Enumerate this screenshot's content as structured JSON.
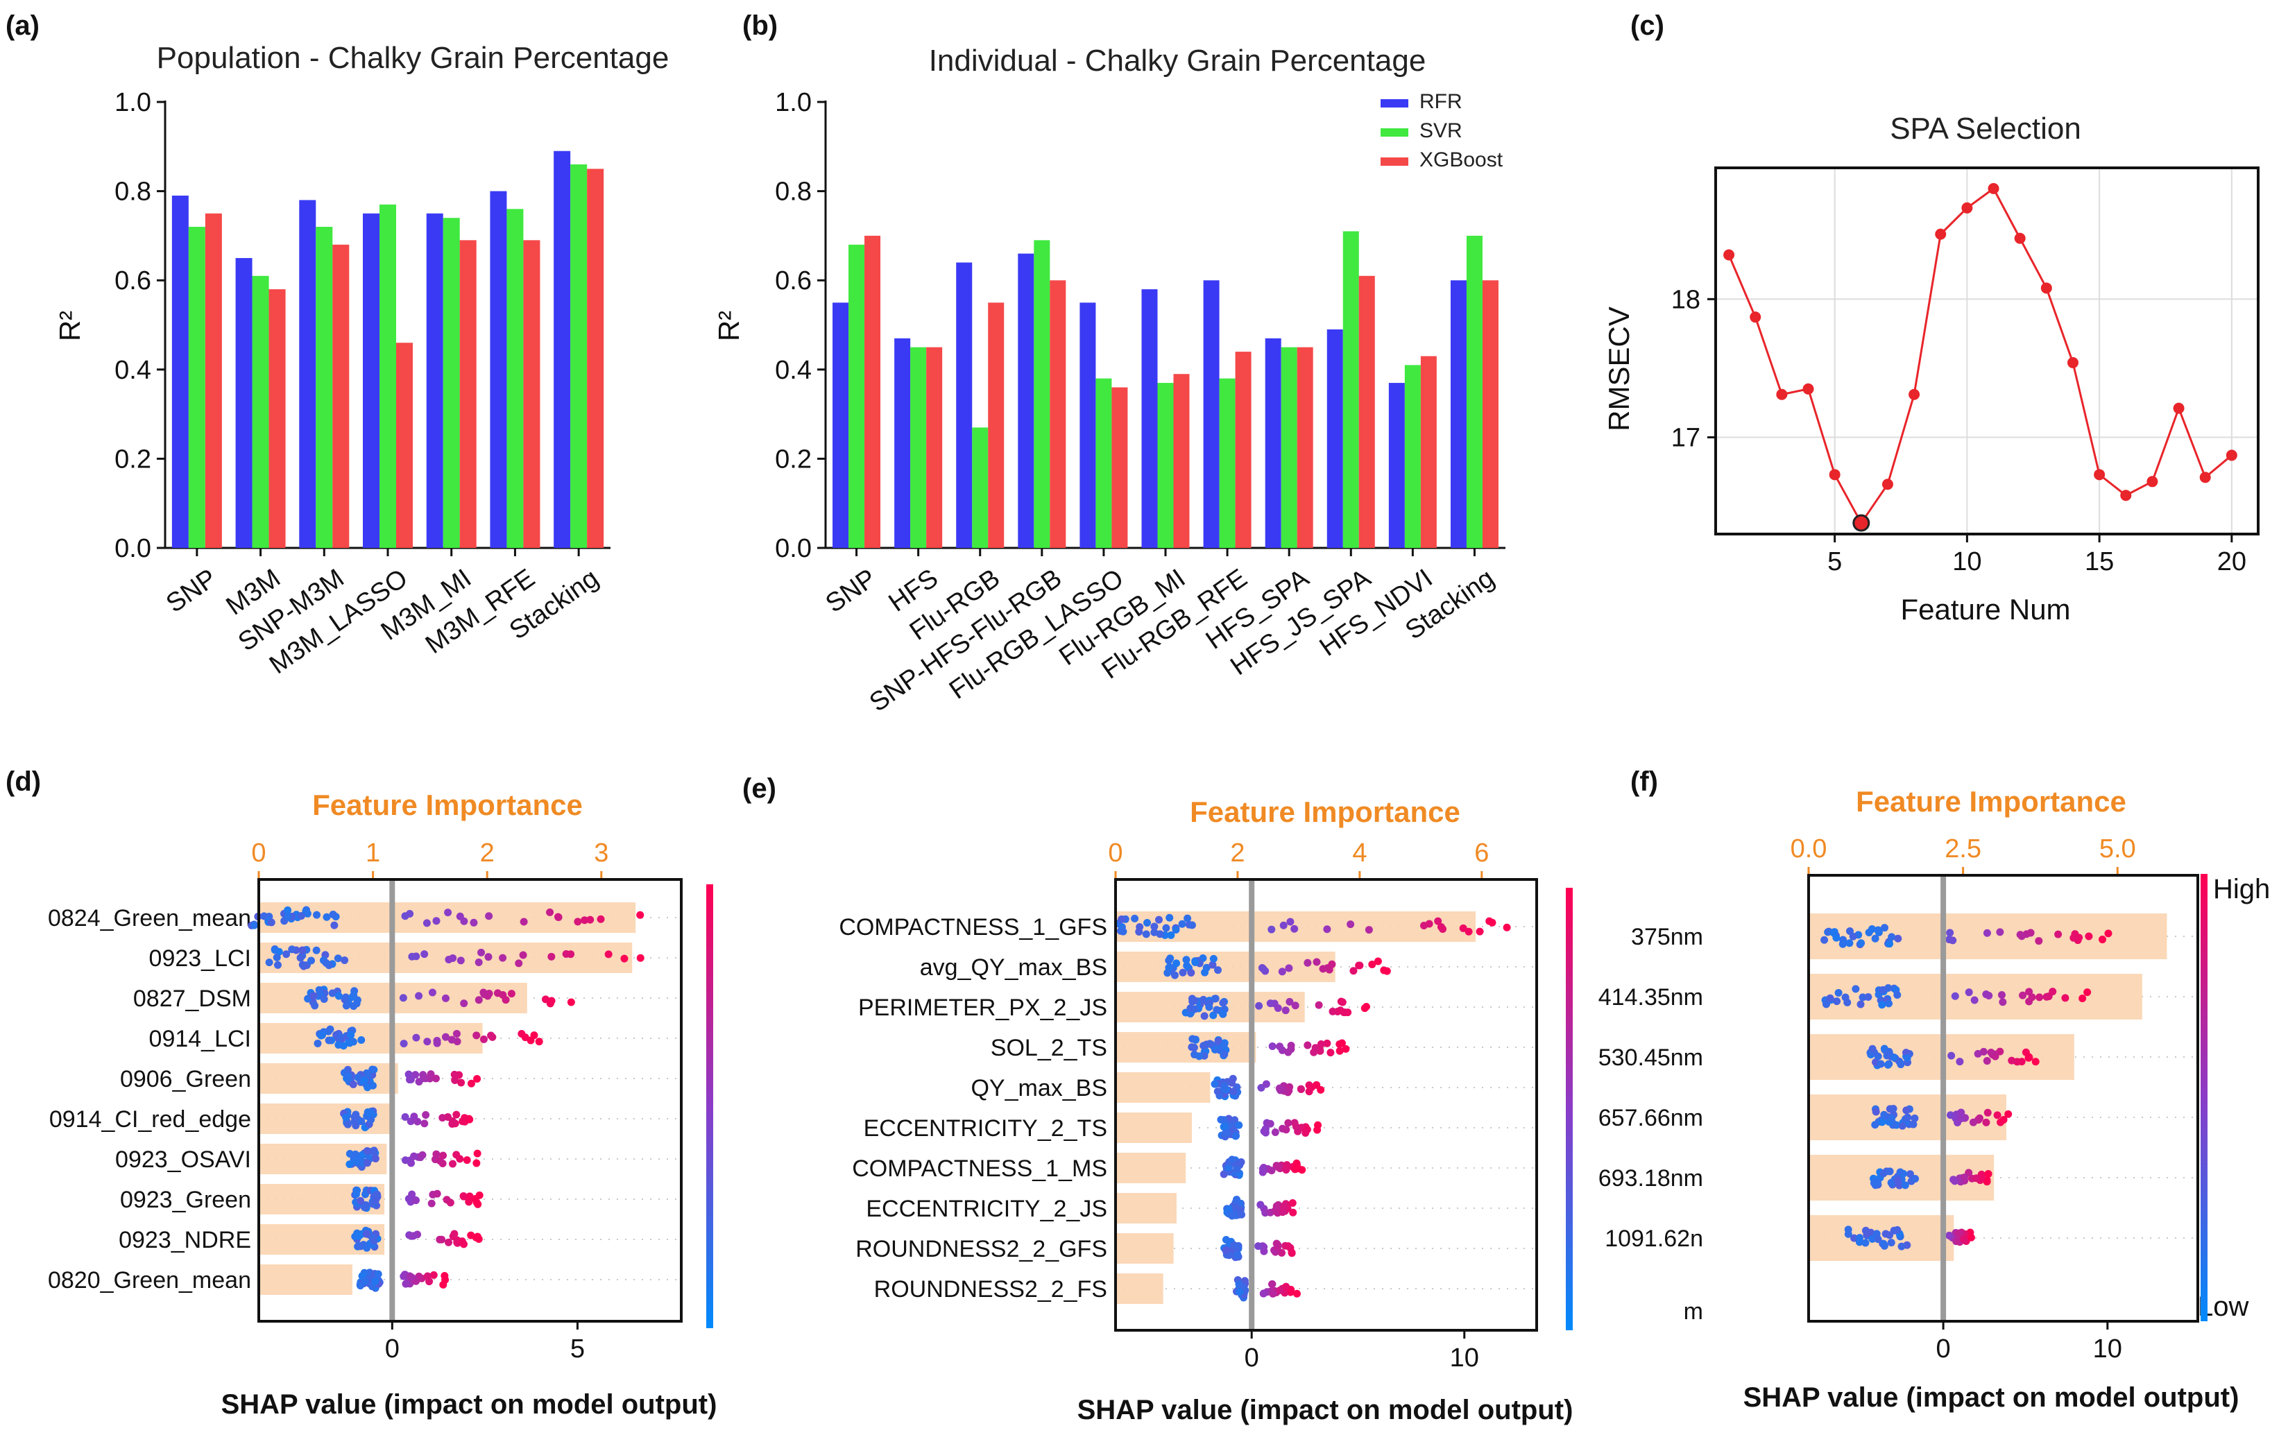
{
  "panels": {
    "a": "(a)",
    "b": "(b)",
    "c": "(c)",
    "d": "(d)",
    "e": "(e)",
    "f": "(f)"
  },
  "colors": {
    "rfr": "#3a3af5",
    "svr": "#40e840",
    "xgb": "#f54848",
    "orange": "#f08a24",
    "line": "#e8252a"
  },
  "chart_data": [
    {
      "id": "a",
      "type": "bar",
      "title": "Population - Chalky Grain Percentage",
      "ylabel": "R²",
      "ylim": [
        0,
        1.0
      ],
      "yticks": [
        "0.0",
        "0.2",
        "0.4",
        "0.6",
        "0.8",
        "1.0"
      ],
      "categories": [
        "SNP",
        "M3M",
        "SNP-M3M",
        "M3M_LASSO",
        "M3M_MI",
        "M3M_RFE",
        "Stacking"
      ],
      "series": [
        {
          "name": "RFR",
          "values": [
            0.79,
            0.65,
            0.78,
            0.75,
            0.75,
            0.8,
            0.89
          ]
        },
        {
          "name": "SVR",
          "values": [
            0.72,
            0.61,
            0.72,
            0.77,
            0.74,
            0.76,
            0.86
          ]
        },
        {
          "name": "XGBoost",
          "values": [
            0.75,
            0.58,
            0.68,
            0.46,
            0.69,
            0.69,
            0.85
          ]
        }
      ]
    },
    {
      "id": "b",
      "type": "bar",
      "title": "Individual - Chalky Grain Percentage",
      "ylabel": "R²",
      "ylim": [
        0,
        1.0
      ],
      "yticks": [
        "0.0",
        "0.2",
        "0.4",
        "0.6",
        "0.8",
        "1.0"
      ],
      "legend": [
        "RFR",
        "SVR",
        "XGBoost"
      ],
      "categories": [
        "SNP",
        "HFS",
        "Flu-RGB",
        "SNP-HFS-Flu-RGB",
        "Flu-RGB_LASSO",
        "Flu-RGB_MI",
        "Flu-RGB_RFE",
        "HFS_SPA",
        "HFS_JS_SPA",
        "HFS_NDVI",
        "Stacking"
      ],
      "series": [
        {
          "name": "RFR",
          "values": [
            0.55,
            0.47,
            0.64,
            0.66,
            0.55,
            0.58,
            0.6,
            0.47,
            0.49,
            0.37,
            0.6
          ]
        },
        {
          "name": "SVR",
          "values": [
            0.68,
            0.45,
            0.27,
            0.69,
            0.38,
            0.37,
            0.38,
            0.45,
            0.71,
            0.41,
            0.7
          ]
        },
        {
          "name": "XGBoost",
          "values": [
            0.7,
            0.45,
            0.55,
            0.6,
            0.36,
            0.39,
            0.44,
            0.45,
            0.61,
            0.43,
            0.6
          ]
        }
      ]
    },
    {
      "id": "c",
      "type": "line",
      "title": "SPA Selection",
      "xlabel": "Feature Num",
      "ylabel": "RMSECV",
      "xlim": [
        0.5,
        21
      ],
      "ylim": [
        16.3,
        18.95
      ],
      "xticks": [
        "5",
        "10",
        "15",
        "20"
      ],
      "yticks": [
        "17",
        "18"
      ],
      "x": [
        1,
        2,
        3,
        4,
        5,
        6,
        7,
        8,
        9,
        10,
        11,
        12,
        13,
        14,
        15,
        16,
        17,
        18,
        19,
        20
      ],
      "y": [
        18.32,
        17.87,
        17.31,
        17.35,
        16.73,
        16.38,
        16.66,
        17.31,
        18.47,
        18.66,
        18.8,
        18.44,
        18.08,
        17.54,
        16.73,
        16.58,
        16.68,
        17.21,
        16.71,
        16.87
      ],
      "highlight_index": 5
    },
    {
      "id": "d",
      "type": "bar",
      "subtype": "shap-summary",
      "importance_title": "Feature Importance",
      "importance_ticks": [
        "0",
        "1",
        "2",
        "3"
      ],
      "importance_range": [
        0,
        3.7
      ],
      "xlabel": "SHAP value (impact on model output)",
      "shap_ticks": [
        "0",
        "5"
      ],
      "shap_range": [
        -3.6,
        7.8
      ],
      "features": [
        "0824_Green_mean",
        "0923_LCI",
        "0827_DSM",
        "0914_LCI",
        "0906_Green",
        "0914_CI_red_edge",
        "0923_OSAVI",
        "0923_Green",
        "0923_NDRE",
        "0820_Green_mean"
      ],
      "importance": [
        3.3,
        3.27,
        2.35,
        1.96,
        1.22,
        1.15,
        1.12,
        1.1,
        1.1,
        0.82
      ],
      "neg_center": [
        -2.7,
        -2.3,
        -1.6,
        -1.4,
        -0.9,
        -0.9,
        -0.8,
        -0.7,
        -0.7,
        -0.6
      ],
      "pos_center": [
        6.4,
        6.0,
        4.3,
        3.5,
        2.1,
        2.0,
        2.0,
        2.1,
        2.0,
        1.2
      ]
    },
    {
      "id": "e",
      "type": "bar",
      "subtype": "shap-summary",
      "importance_title": "Feature Importance",
      "importance_ticks": [
        "0",
        "2",
        "4",
        "6"
      ],
      "importance_range": [
        0,
        6.9
      ],
      "xlabel": "SHAP value (impact on model output)",
      "shap_ticks": [
        "0",
        "10"
      ],
      "shap_range": [
        -6.4,
        13.4
      ],
      "features": [
        "COMPACTNESS_1_GFS",
        "avg_QY_max_BS",
        "PERIMETER_PX_2_JS",
        "SOL_2_TS",
        "QY_max_BS",
        "ECCENTRICITY_2_TS",
        "COMPACTNESS_1_MS",
        "ECCENTRICITY_2_JS",
        "ROUNDNESS2_2_GFS",
        "ROUNDNESS2_2_FS"
      ],
      "importance": [
        5.9,
        3.6,
        3.1,
        2.3,
        1.55,
        1.25,
        1.15,
        1.0,
        0.95,
        0.78
      ],
      "neg_center": [
        -4.5,
        -2.8,
        -2.3,
        -2.0,
        -1.2,
        -1.0,
        -0.9,
        -0.8,
        -0.9,
        -0.5
      ],
      "pos_center": [
        10.5,
        5.5,
        4.8,
        4.0,
        3.0,
        2.8,
        2.0,
        2.0,
        2.0,
        1.8
      ]
    },
    {
      "id": "f",
      "type": "bar",
      "subtype": "shap-summary",
      "importance_title": "Feature Importance",
      "importance_ticks": [
        "0.0",
        "2.5",
        "5.0"
      ],
      "importance_range": [
        0,
        6.3
      ],
      "xlabel": "SHAP value (impact on model output)",
      "shap_ticks": [
        "0",
        "10"
      ],
      "shap_range": [
        -8.2,
        15.5
      ],
      "features": [
        "375nm",
        "414.35nm",
        "530.45nm",
        "657.66nm",
        "693.18nm",
        "1091.62n"
      ],
      "extra_label": "m",
      "importance": [
        5.8,
        5.4,
        4.3,
        3.2,
        3.0,
        2.35
      ],
      "neg_center": [
        -5.0,
        -5.0,
        -3.5,
        -3.0,
        -3.0,
        -4.0
      ],
      "pos_center": [
        9.0,
        8.0,
        5.0,
        3.5,
        2.5,
        1.5
      ],
      "colorbar_high": "High",
      "colorbar_low": "Low"
    }
  ]
}
